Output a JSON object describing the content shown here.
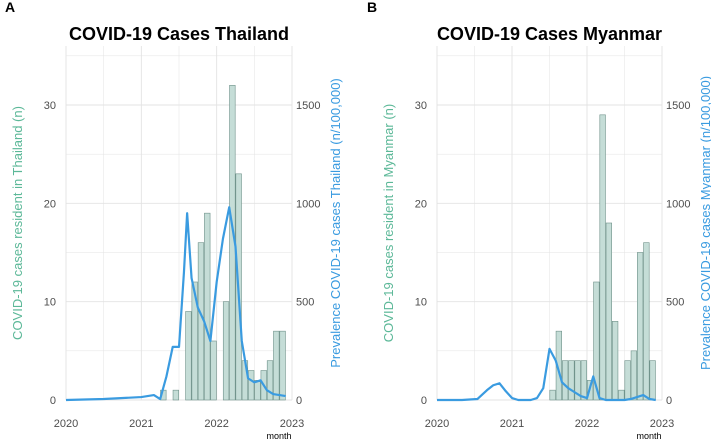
{
  "colors": {
    "bar_fill": "#c5ddd7",
    "bar_stroke": "#6e9189",
    "left_axis": "#5cb898",
    "right_axis": "#3a9be0",
    "line": "#3a9be0",
    "grid": "#e3e3e3",
    "tick_text": "#4d4d4d",
    "title": "#000000"
  },
  "chart_data": [
    {
      "panel_label": "A",
      "type": "bar+line",
      "title": "COVID-19 Cases Thailand",
      "xlabel": "month",
      "ylabel_left": "COVID-19 cases resident in Thailand (n)",
      "ylabel_right": "Prevalence COVID-19 cases Thailand (n/100,000)",
      "x_range": [
        "2020-01",
        "2023-01"
      ],
      "x_ticks": [
        "2020",
        "2021",
        "2022",
        "2023"
      ],
      "y_left_range": [
        0,
        36
      ],
      "y_left_ticks": [
        0,
        10,
        20,
        30
      ],
      "y_right_range": [
        0,
        1800
      ],
      "y_right_ticks": [
        0,
        500,
        1000,
        1500
      ],
      "grid": true,
      "bar_series": {
        "months": [
          "2021-04",
          "2021-05",
          "2021-06",
          "2021-07",
          "2021-08",
          "2021-09",
          "2021-10",
          "2021-11",
          "2021-12",
          "2022-01",
          "2022-02",
          "2022-03",
          "2022-04",
          "2022-05",
          "2022-06",
          "2022-07",
          "2022-08",
          "2022-09",
          "2022-10",
          "2022-11"
        ],
        "values": [
          1,
          0,
          1,
          0,
          9,
          12,
          16,
          19,
          6,
          0,
          10,
          32,
          23,
          4,
          3,
          2,
          3,
          4,
          7,
          7
        ]
      },
      "line_series": {
        "dates": [
          "2020-01-01",
          "2020-07-01",
          "2021-01-01",
          "2021-03-01",
          "2021-04-01",
          "2021-05-01",
          "2021-06-01",
          "2021-07-01",
          "2021-07-25",
          "2021-08-10",
          "2021-09-01",
          "2021-10-01",
          "2021-11-01",
          "2021-12-01",
          "2022-01-01",
          "2022-02-01",
          "2022-03-01",
          "2022-04-01",
          "2022-05-01",
          "2022-06-01",
          "2022-07-01",
          "2022-08-01",
          "2022-09-01",
          "2022-10-01",
          "2022-11-01",
          "2022-12-01"
        ],
        "values": [
          0,
          5,
          15,
          25,
          5,
          120,
          270,
          270,
          650,
          950,
          620,
          470,
          400,
          300,
          600,
          820,
          980,
          780,
          300,
          110,
          90,
          100,
          50,
          30,
          25,
          20
        ]
      }
    },
    {
      "panel_label": "B",
      "type": "bar+line",
      "title": "COVID-19 Cases Myanmar",
      "xlabel": "month",
      "ylabel_left": "COVID-19 cases resident in Myanmar (n)",
      "ylabel_right": "Prevalence COVID-19 cases Myanmar (n/100,000)",
      "x_range": [
        "2020-01",
        "2023-01"
      ],
      "x_ticks": [
        "2020",
        "2021",
        "2022",
        "2023"
      ],
      "y_left_range": [
        0,
        36
      ],
      "y_left_ticks": [
        0,
        10,
        20,
        30
      ],
      "y_right_range": [
        0,
        1800
      ],
      "y_right_ticks": [
        0,
        500,
        1000,
        1500
      ],
      "grid": true,
      "bar_series": {
        "months": [
          "2021-07",
          "2021-08",
          "2021-09",
          "2021-10",
          "2021-11",
          "2021-12",
          "2022-01",
          "2022-02",
          "2022-03",
          "2022-04",
          "2022-05",
          "2022-06",
          "2022-07",
          "2022-08",
          "2022-09",
          "2022-10",
          "2022-11"
        ],
        "values": [
          1,
          7,
          4,
          4,
          4,
          4,
          2,
          12,
          29,
          18,
          8,
          1,
          4,
          5,
          15,
          16,
          4
        ]
      },
      "line_series": {
        "dates": [
          "2020-01-01",
          "2020-05-01",
          "2020-07-15",
          "2020-09-01",
          "2020-10-01",
          "2020-11-01",
          "2020-12-01",
          "2021-01-01",
          "2021-02-01",
          "2021-03-01",
          "2021-04-01",
          "2021-05-01",
          "2021-06-01",
          "2021-07-01",
          "2021-08-01",
          "2021-09-01",
          "2021-10-01",
          "2021-11-01",
          "2021-12-01",
          "2022-01-01",
          "2022-02-01",
          "2022-03-01",
          "2022-04-01",
          "2022-05-01",
          "2022-06-01",
          "2022-07-01",
          "2022-08-01",
          "2022-09-01",
          "2022-10-01",
          "2022-11-01",
          "2022-12-01"
        ],
        "values": [
          0,
          0,
          5,
          50,
          75,
          85,
          45,
          10,
          0,
          0,
          0,
          10,
          60,
          260,
          200,
          90,
          60,
          40,
          20,
          10,
          120,
          10,
          0,
          0,
          0,
          0,
          5,
          15,
          25,
          5,
          0
        ]
      }
    }
  ]
}
